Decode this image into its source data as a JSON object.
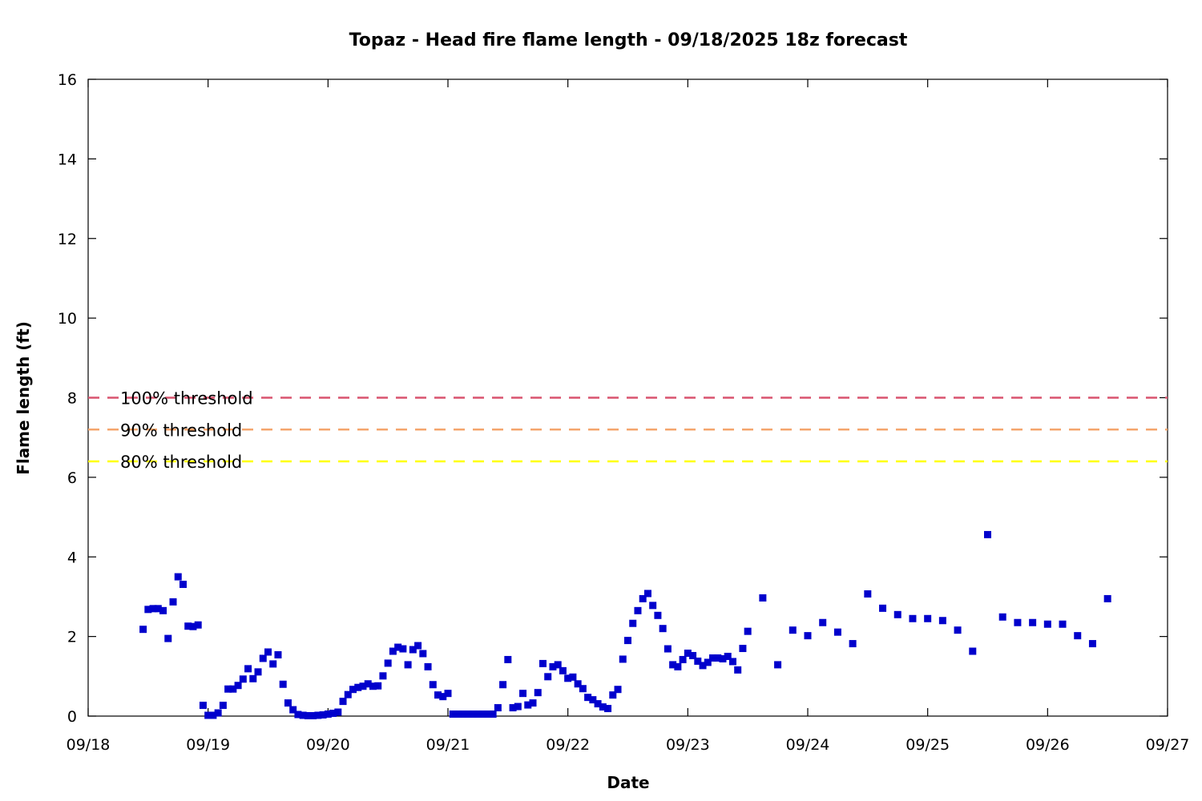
{
  "chart_data": {
    "type": "scatter",
    "title": "Topaz - Head fire flame length - 09/18/2025 18z forecast",
    "xlabel": "Date",
    "ylabel": "Flame length (ft)",
    "xlim": [
      "09/18",
      "09/27"
    ],
    "ylim": [
      0,
      16
    ],
    "x_tick_labels": [
      "09/18",
      "09/19",
      "09/20",
      "09/21",
      "09/22",
      "09/23",
      "09/24",
      "09/25",
      "09/26",
      "09/27"
    ],
    "y_tick_labels": [
      "0",
      "2",
      "4",
      "6",
      "8",
      "10",
      "12",
      "14",
      "16"
    ],
    "grid": false,
    "series": [
      {
        "color": "#0000cc",
        "marker": "square",
        "points": [
          [
            "09/18 11:00",
            2.18
          ],
          [
            "09/18 12:00",
            2.68
          ],
          [
            "09/18 13:00",
            2.7
          ],
          [
            "09/18 14:00",
            2.7
          ],
          [
            "09/18 15:00",
            2.65
          ],
          [
            "09/18 16:00",
            1.95
          ],
          [
            "09/18 17:00",
            2.87
          ],
          [
            "09/18 18:00",
            3.5
          ],
          [
            "09/18 19:00",
            3.31
          ],
          [
            "09/18 20:00",
            2.26
          ],
          [
            "09/18 21:00",
            2.25
          ],
          [
            "09/18 22:00",
            2.29
          ],
          [
            "09/18 23:00",
            0.27
          ],
          [
            "09/19 00:00",
            0.02
          ],
          [
            "09/19 01:00",
            0.02
          ],
          [
            "09/19 02:00",
            0.08
          ],
          [
            "09/19 03:00",
            0.27
          ],
          [
            "09/19 04:00",
            0.68
          ],
          [
            "09/19 05:00",
            0.68
          ],
          [
            "09/19 06:00",
            0.77
          ],
          [
            "09/19 07:00",
            0.93
          ],
          [
            "09/19 08:00",
            1.19
          ],
          [
            "09/19 09:00",
            0.94
          ],
          [
            "09/19 10:00",
            1.11
          ],
          [
            "09/19 11:00",
            1.45
          ],
          [
            "09/19 12:00",
            1.61
          ],
          [
            "09/19 13:00",
            1.31
          ],
          [
            "09/19 14:00",
            1.54
          ],
          [
            "09/19 15:00",
            0.8
          ],
          [
            "09/19 16:00",
            0.33
          ],
          [
            "09/19 17:00",
            0.16
          ],
          [
            "09/19 18:00",
            0.04
          ],
          [
            "09/19 19:00",
            0.02
          ],
          [
            "09/19 20:00",
            0.01
          ],
          [
            "09/19 21:00",
            0.01
          ],
          [
            "09/19 22:00",
            0.02
          ],
          [
            "09/19 23:00",
            0.03
          ],
          [
            "09/20 00:00",
            0.05
          ],
          [
            "09/20 01:00",
            0.07
          ],
          [
            "09/20 02:00",
            0.1
          ],
          [
            "09/20 03:00",
            0.37
          ],
          [
            "09/20 04:00",
            0.54
          ],
          [
            "09/20 05:00",
            0.67
          ],
          [
            "09/20 06:00",
            0.72
          ],
          [
            "09/20 07:00",
            0.75
          ],
          [
            "09/20 08:00",
            0.81
          ],
          [
            "09/20 09:00",
            0.75
          ],
          [
            "09/20 10:00",
            0.76
          ],
          [
            "09/20 11:00",
            1.01
          ],
          [
            "09/20 12:00",
            1.33
          ],
          [
            "09/20 13:00",
            1.63
          ],
          [
            "09/20 14:00",
            1.73
          ],
          [
            "09/20 15:00",
            1.69
          ],
          [
            "09/20 16:00",
            1.29
          ],
          [
            "09/20 17:00",
            1.67
          ],
          [
            "09/20 18:00",
            1.77
          ],
          [
            "09/20 19:00",
            1.57
          ],
          [
            "09/20 20:00",
            1.24
          ],
          [
            "09/20 21:00",
            0.79
          ],
          [
            "09/20 22:00",
            0.53
          ],
          [
            "09/20 23:00",
            0.49
          ],
          [
            "09/21 00:00",
            0.57
          ],
          [
            "09/21 01:00",
            0.05
          ],
          [
            "09/21 02:00",
            0.05
          ],
          [
            "09/21 03:00",
            0.05
          ],
          [
            "09/21 04:00",
            0.05
          ],
          [
            "09/21 05:00",
            0.05
          ],
          [
            "09/21 06:00",
            0.05
          ],
          [
            "09/21 07:00",
            0.05
          ],
          [
            "09/21 08:00",
            0.05
          ],
          [
            "09/21 09:00",
            0.05
          ],
          [
            "09/21 10:00",
            0.21
          ],
          [
            "09/21 11:00",
            0.79
          ],
          [
            "09/21 12:00",
            1.42
          ],
          [
            "09/21 13:00",
            0.21
          ],
          [
            "09/21 14:00",
            0.24
          ],
          [
            "09/21 15:00",
            0.57
          ],
          [
            "09/21 16:00",
            0.28
          ],
          [
            "09/21 17:00",
            0.33
          ],
          [
            "09/21 18:00",
            0.59
          ],
          [
            "09/21 19:00",
            1.32
          ],
          [
            "09/21 20:00",
            0.99
          ],
          [
            "09/21 21:00",
            1.24
          ],
          [
            "09/21 22:00",
            1.29
          ],
          [
            "09/21 23:00",
            1.14
          ],
          [
            "09/22 00:00",
            0.95
          ],
          [
            "09/22 01:00",
            0.98
          ],
          [
            "09/22 02:00",
            0.81
          ],
          [
            "09/22 03:00",
            0.69
          ],
          [
            "09/22 04:00",
            0.47
          ],
          [
            "09/22 05:00",
            0.41
          ],
          [
            "09/22 06:00",
            0.31
          ],
          [
            "09/22 07:00",
            0.23
          ],
          [
            "09/22 08:00",
            0.19
          ],
          [
            "09/22 09:00",
            0.53
          ],
          [
            "09/22 10:00",
            0.67
          ],
          [
            "09/22 11:00",
            1.43
          ],
          [
            "09/22 12:00",
            1.9
          ],
          [
            "09/22 13:00",
            2.33
          ],
          [
            "09/22 14:00",
            2.65
          ],
          [
            "09/22 15:00",
            2.95
          ],
          [
            "09/22 16:00",
            3.08
          ],
          [
            "09/22 17:00",
            2.78
          ],
          [
            "09/22 18:00",
            2.53
          ],
          [
            "09/22 19:00",
            2.2
          ],
          [
            "09/22 20:00",
            1.69
          ],
          [
            "09/22 21:00",
            1.29
          ],
          [
            "09/22 22:00",
            1.24
          ],
          [
            "09/22 23:00",
            1.42
          ],
          [
            "09/23 00:00",
            1.58
          ],
          [
            "09/23 01:00",
            1.52
          ],
          [
            "09/23 02:00",
            1.38
          ],
          [
            "09/23 03:00",
            1.27
          ],
          [
            "09/23 04:00",
            1.35
          ],
          [
            "09/23 05:00",
            1.46
          ],
          [
            "09/23 06:00",
            1.46
          ],
          [
            "09/23 07:00",
            1.44
          ],
          [
            "09/23 08:00",
            1.5
          ],
          [
            "09/23 09:00",
            1.37
          ],
          [
            "09/23 10:00",
            1.16
          ],
          [
            "09/23 11:00",
            1.7
          ],
          [
            "09/23 12:00",
            2.13
          ],
          [
            "09/23 15:00",
            2.97
          ],
          [
            "09/23 18:00",
            1.29
          ],
          [
            "09/23 21:00",
            2.16
          ],
          [
            "09/24 00:00",
            2.02
          ],
          [
            "09/24 03:00",
            2.35
          ],
          [
            "09/24 06:00",
            2.11
          ],
          [
            "09/24 09:00",
            1.82
          ],
          [
            "09/24 12:00",
            3.07
          ],
          [
            "09/24 15:00",
            2.71
          ],
          [
            "09/24 18:00",
            2.55
          ],
          [
            "09/24 21:00",
            2.45
          ],
          [
            "09/25 00:00",
            2.45
          ],
          [
            "09/25 03:00",
            2.4
          ],
          [
            "09/25 06:00",
            2.16
          ],
          [
            "09/25 09:00",
            1.63
          ],
          [
            "09/25 12:00",
            4.56
          ],
          [
            "09/25 15:00",
            2.49
          ],
          [
            "09/25 18:00",
            2.35
          ],
          [
            "09/25 21:00",
            2.35
          ],
          [
            "09/26 00:00",
            2.31
          ],
          [
            "09/26 03:00",
            2.31
          ],
          [
            "09/26 06:00",
            2.02
          ],
          [
            "09/26 09:00",
            1.82
          ],
          [
            "09/26 12:00",
            2.95
          ]
        ]
      }
    ],
    "thresholds": [
      {
        "label": "100% threshold",
        "value": 8.0,
        "color": "#d9536f"
      },
      {
        "label": "90% threshold",
        "value": 7.2,
        "color": "#f4a56c"
      },
      {
        "label": "80% threshold",
        "value": 6.4,
        "color": "#ffff00"
      }
    ]
  }
}
